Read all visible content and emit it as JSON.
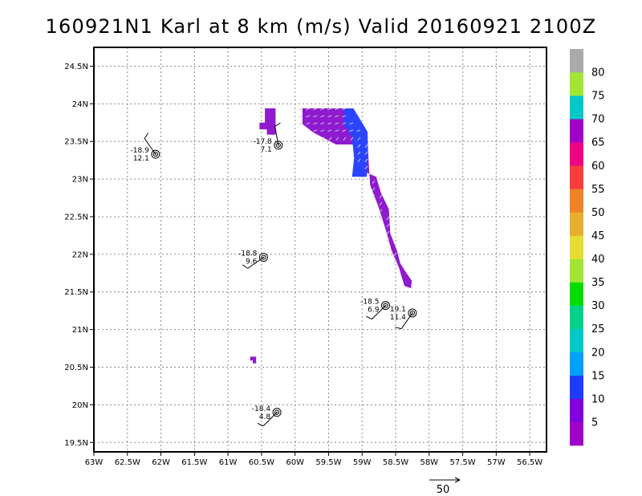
{
  "chart_data": {
    "type": "wind-field-map",
    "title": "160921N1 Karl at 8 km (m/s) Valid 20160921 2100Z",
    "xlim": [
      -63,
      -56.25
    ],
    "ylim": [
      19.375,
      24.75
    ],
    "x_ticks": [
      {
        "value": -63,
        "label": "63W"
      },
      {
        "value": -62.5,
        "label": "62.5W"
      },
      {
        "value": -62,
        "label": "62W"
      },
      {
        "value": -61.5,
        "label": "61.5W"
      },
      {
        "value": -61,
        "label": "61W"
      },
      {
        "value": -60.5,
        "label": "60.5W"
      },
      {
        "value": -60,
        "label": "60W"
      },
      {
        "value": -59.5,
        "label": "59.5W"
      },
      {
        "value": -59,
        "label": "59W"
      },
      {
        "value": -58.5,
        "label": "58.5W"
      },
      {
        "value": -58,
        "label": "58W"
      },
      {
        "value": -57.5,
        "label": "57.5W"
      },
      {
        "value": -57,
        "label": "57W"
      },
      {
        "value": -56.5,
        "label": "56.5W"
      }
    ],
    "y_ticks": [
      {
        "value": 19.5,
        "label": "19.5N"
      },
      {
        "value": 20,
        "label": "20N"
      },
      {
        "value": 20.5,
        "label": "20.5N"
      },
      {
        "value": 21,
        "label": "21N"
      },
      {
        "value": 21.5,
        "label": "21.5N"
      },
      {
        "value": 22,
        "label": "22N"
      },
      {
        "value": 22.5,
        "label": "22.5N"
      },
      {
        "value": 23,
        "label": "23N"
      },
      {
        "value": 23.5,
        "label": "23.5N"
      },
      {
        "value": 24,
        "label": "24N"
      },
      {
        "value": 24.5,
        "label": "24.5N"
      }
    ],
    "grid": true,
    "colorbar": {
      "colors": [
        "#a000c8",
        "#8200dc",
        "#1e3cff",
        "#00a0ff",
        "#00c8c8",
        "#00d28c",
        "#00dc00",
        "#a0e632",
        "#e6dc32",
        "#e6af2d",
        "#f08228",
        "#fa3c3c",
        "#f00082",
        "#a000c8",
        "#00c8c8",
        "#a0e632",
        "#aaaaaa"
      ],
      "labels": [
        "5",
        "10",
        "15",
        "20",
        "25",
        "30",
        "35",
        "40",
        "45",
        "50",
        "55",
        "60",
        "65",
        "70",
        "75",
        "80"
      ]
    },
    "reference_vector": {
      "label": "50",
      "value": 50
    },
    "wind_field_regions": [
      {
        "name": "main-band",
        "fill": "#8f1ad0",
        "polygon": [
          [
            -59.89,
            23.94
          ],
          [
            -59.22,
            23.94
          ],
          [
            -59.05,
            23.73
          ],
          [
            -58.93,
            23.63
          ],
          [
            -58.91,
            23.35
          ],
          [
            -58.88,
            22.92
          ],
          [
            -58.76,
            22.64
          ],
          [
            -58.65,
            22.33
          ],
          [
            -58.56,
            22.05
          ],
          [
            -58.45,
            21.82
          ],
          [
            -58.37,
            21.58
          ],
          [
            -58.27,
            21.55
          ],
          [
            -58.26,
            21.65
          ],
          [
            -58.36,
            21.78
          ],
          [
            -58.43,
            21.88
          ],
          [
            -58.48,
            22.05
          ],
          [
            -58.58,
            22.28
          ],
          [
            -58.6,
            22.6
          ],
          [
            -58.72,
            22.82
          ],
          [
            -58.79,
            23.03
          ],
          [
            -58.92,
            23.08
          ],
          [
            -59.02,
            23.23
          ],
          [
            -59.12,
            23.46
          ],
          [
            -59.39,
            23.46
          ],
          [
            -59.52,
            23.52
          ],
          [
            -59.73,
            23.62
          ],
          [
            -59.89,
            23.73
          ]
        ]
      },
      {
        "name": "blue-core",
        "fill": "#2a44ff",
        "polygon": [
          [
            -59.27,
            23.94
          ],
          [
            -59.13,
            23.94
          ],
          [
            -59.0,
            23.75
          ],
          [
            -58.92,
            23.63
          ],
          [
            -58.91,
            23.33
          ],
          [
            -58.93,
            23.03
          ],
          [
            -59.15,
            23.03
          ],
          [
            -59.12,
            23.28
          ],
          [
            -59.15,
            23.55
          ],
          [
            -59.27,
            23.73
          ]
        ]
      },
      {
        "name": "patch-north",
        "fill": "#8f1ad0",
        "polygon": [
          [
            -60.45,
            23.94
          ],
          [
            -60.29,
            23.94
          ],
          [
            -60.29,
            23.59
          ],
          [
            -60.42,
            23.59
          ],
          [
            -60.42,
            23.66
          ],
          [
            -60.53,
            23.66
          ],
          [
            -60.53,
            23.75
          ],
          [
            -60.45,
            23.75
          ]
        ]
      },
      {
        "name": "patch-south",
        "fill": "#8f1ad0",
        "polygon": [
          [
            -60.67,
            20.64
          ],
          [
            -60.58,
            20.64
          ],
          [
            -60.58,
            20.55
          ],
          [
            -60.63,
            20.55
          ],
          [
            -60.63,
            20.59
          ],
          [
            -60.67,
            20.59
          ]
        ]
      }
    ],
    "stations": [
      {
        "lon": -62.08,
        "lat": 23.33,
        "top": "-18.9",
        "bottom": "12.1",
        "barb_dir": 325
      },
      {
        "lon": -60.25,
        "lat": 23.45,
        "top": "-17.8",
        "bottom": "7.1",
        "barb_dir": 350
      },
      {
        "lon": -60.47,
        "lat": 21.96,
        "top": "-18.8",
        "bottom": "9.6",
        "barb_dir": 235
      },
      {
        "lon": -58.65,
        "lat": 21.32,
        "top": "-18.5",
        "bottom": "6.9",
        "barb_dir": 225
      },
      {
        "lon": -58.25,
        "lat": 21.22,
        "top": "19.1",
        "bottom": "11.4",
        "barb_dir": 215
      },
      {
        "lon": -60.27,
        "lat": 19.9,
        "top": "-18.4",
        "bottom": "4.8",
        "barb_dir": 225
      }
    ]
  }
}
